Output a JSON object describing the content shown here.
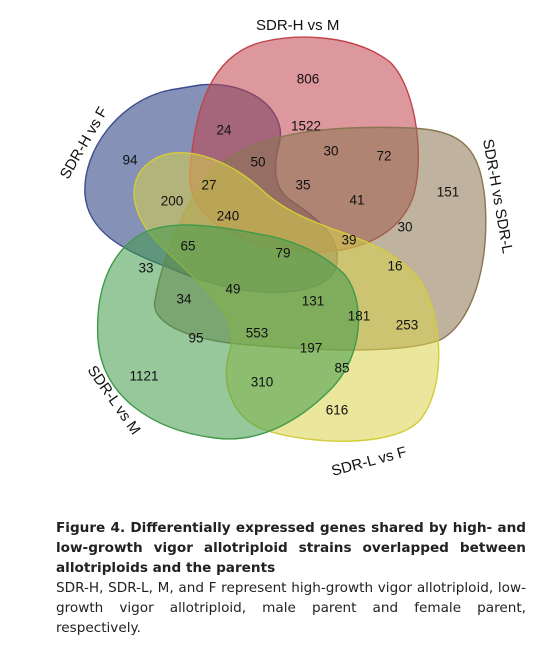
{
  "sets": [
    {
      "key": "dark",
      "name": "SDR-H vs F",
      "color": "#3b4d8c"
    },
    {
      "key": "red",
      "name": "SDR-H vs M",
      "color": "#c0434a"
    },
    {
      "key": "brown",
      "name": "SDR-H vs SDR-L",
      "color": "#8a7550"
    },
    {
      "key": "yellow",
      "name": "SDR-L vs F",
      "color": "#d9d24a"
    },
    {
      "key": "green",
      "name": "SDR-L vs M",
      "color": "#3f9a4a"
    }
  ],
  "regions": [
    "806",
    "24",
    "1522",
    "30",
    "72",
    "94",
    "50",
    "27",
    "35",
    "151",
    "200",
    "240",
    "41",
    "30",
    "39",
    "65",
    "79",
    "16",
    "33",
    "49",
    "34",
    "131",
    "181",
    "253",
    "95",
    "553",
    "197",
    "85",
    "1121",
    "310",
    "616"
  ],
  "caption": {
    "title": "Figure 4.  Differentially expressed genes shared by high- and low-growth vigor allotriploid strains overlapped between allotriploids and the parents",
    "body": "SDR-H, SDR-L, M, and F represent high-growth vigor allotriploid, low-growth vigor allotriploid, male parent and female parent, respectively."
  }
}
